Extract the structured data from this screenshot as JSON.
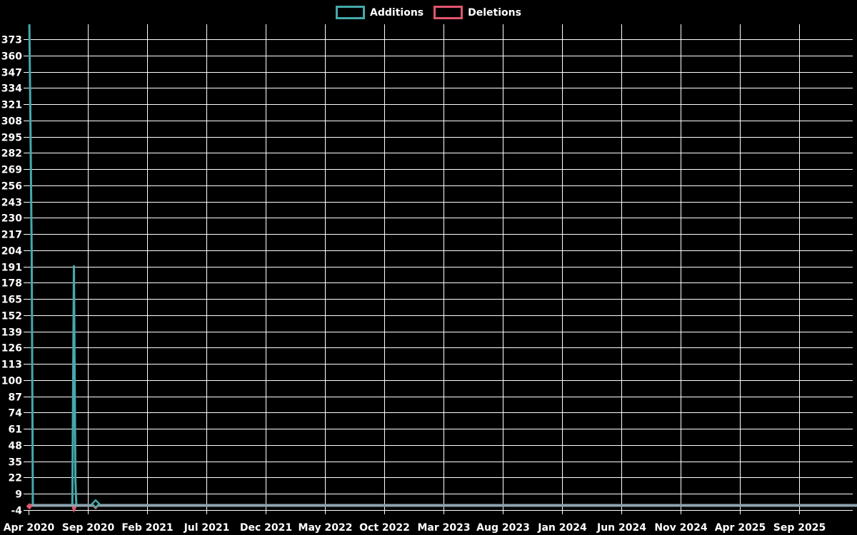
{
  "legend": {
    "items": [
      {
        "label": "Additions",
        "color": "#45A9AC"
      },
      {
        "label": "Deletions",
        "color": "#E2566D"
      }
    ]
  },
  "chart_data": {
    "type": "line",
    "title": "",
    "background": "#000000",
    "grid_color": "#FFFFFF",
    "text_color": "#FFFFFF",
    "legend_position": "top-center",
    "zero_line": {
      "value": 0,
      "color": "#8CA4AE",
      "width": 4
    },
    "x_axis": {
      "start": "Apr 2020",
      "months_per_tick": 5,
      "grid": true,
      "ticks": [
        "Apr 2020",
        "Sep 2020",
        "Feb 2021",
        "Jul 2021",
        "Dec 2021",
        "May 2022",
        "Oct 2022",
        "Mar 2023",
        "Aug 2023",
        "Jan 2024",
        "Jun 2024",
        "Nov 2024",
        "Apr 2025",
        "Sep 2025"
      ]
    },
    "y_axis": {
      "min": -4,
      "max": 385,
      "dtick": 13,
      "grid": true,
      "ticks": [
        373,
        360,
        347,
        334,
        321,
        308,
        295,
        282,
        269,
        256,
        243,
        230,
        217,
        204,
        191,
        178,
        165,
        152,
        139,
        126,
        113,
        100,
        87,
        74,
        61,
        48,
        35,
        22,
        9,
        -4
      ]
    },
    "series": [
      {
        "name": "Additions",
        "color": "#45A9AC",
        "width": 3,
        "marker_style": "open-diamond",
        "points": [
          [
            "2020-04-03",
            385
          ],
          [
            "2020-04-06",
            303
          ],
          [
            "2020-04-09",
            200
          ],
          [
            "2020-04-12",
            0
          ],
          [
            "2020-07-22",
            0
          ],
          [
            "2020-07-26",
            192
          ],
          [
            "2020-07-30",
            19
          ],
          [
            "2020-08-02",
            0
          ],
          [
            "2026-02-15",
            0
          ]
        ],
        "markers": [
          [
            "2020-09-21",
            1
          ]
        ]
      },
      {
        "name": "Deletions",
        "color": "#E2566D",
        "width": 3,
        "marker_style": "filled-diamond",
        "points": [
          [
            "2020-04-03",
            -1
          ],
          [
            "2020-04-12",
            0
          ],
          [
            "2020-07-22",
            0
          ],
          [
            "2020-07-26",
            -4
          ],
          [
            "2020-08-02",
            0
          ],
          [
            "2026-02-15",
            0
          ]
        ],
        "markers": [
          [
            "2020-04-03",
            -1
          ],
          [
            "2020-09-21",
            -1
          ]
        ]
      }
    ]
  }
}
